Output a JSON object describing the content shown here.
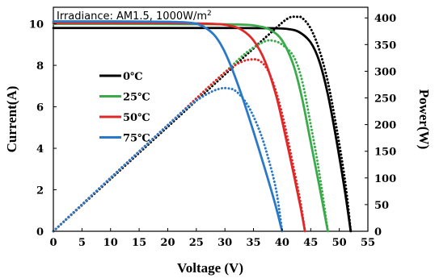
{
  "chart_data": {
    "type": "line",
    "annotation": "Irradiance: AM1.5,  1000W/m",
    "annotation_sup": "2",
    "xlabel": "Voltage (V)",
    "ylabel_left": "Current(A)",
    "ylabel_right": "Power(W)",
    "xlim": [
      0,
      55
    ],
    "ylim_left": [
      0,
      10.8
    ],
    "ylim_right": [
      0,
      420
    ],
    "xticks": [
      0,
      5,
      10,
      15,
      20,
      25,
      30,
      35,
      40,
      45,
      50,
      55
    ],
    "yticks_left": [
      0,
      2,
      4,
      6,
      8,
      10
    ],
    "yticks_right": [
      0,
      50,
      100,
      150,
      200,
      250,
      300,
      350,
      400
    ],
    "legend_position": "center-left",
    "grid": false,
    "series": [
      {
        "name": "0℃",
        "color": "#000000",
        "current": [
          [
            0,
            9.8
          ],
          [
            10,
            9.8
          ],
          [
            20,
            9.8
          ],
          [
            30,
            9.8
          ],
          [
            38,
            9.79
          ],
          [
            41,
            9.75
          ],
          [
            43,
            9.6
          ],
          [
            45,
            9.1
          ],
          [
            46.5,
            8.2
          ],
          [
            48,
            6.6
          ],
          [
            49.5,
            4.4
          ],
          [
            51,
            1.9
          ],
          [
            52,
            0
          ]
        ],
        "power": [
          [
            0,
            0
          ],
          [
            10,
            98
          ],
          [
            20,
            196
          ],
          [
            30,
            294
          ],
          [
            38,
            372
          ],
          [
            41,
            399
          ],
          [
            42.5,
            402
          ],
          [
            43.5,
            400
          ],
          [
            45,
            380
          ],
          [
            46.5,
            340
          ],
          [
            48,
            280
          ],
          [
            49.5,
            195
          ],
          [
            51,
            95
          ],
          [
            52,
            0
          ]
        ]
      },
      {
        "name": "25℃",
        "color": "#3aaa4a",
        "current": [
          [
            0,
            10.0
          ],
          [
            10,
            10.0
          ],
          [
            20,
            9.99
          ],
          [
            30,
            9.98
          ],
          [
            34,
            9.95
          ],
          [
            36,
            9.88
          ],
          [
            38,
            9.7
          ],
          [
            40,
            9.2
          ],
          [
            42,
            8.0
          ],
          [
            43.5,
            6.4
          ],
          [
            45,
            4.3
          ],
          [
            46.5,
            2.2
          ],
          [
            48,
            0
          ]
        ],
        "power": [
          [
            0,
            0
          ],
          [
            10,
            100
          ],
          [
            20,
            199
          ],
          [
            30,
            298
          ],
          [
            34,
            337
          ],
          [
            37,
            356
          ],
          [
            38.5,
            357
          ],
          [
            40,
            350
          ],
          [
            42,
            328
          ],
          [
            43.5,
            282
          ],
          [
            45,
            200
          ],
          [
            46.5,
            110
          ],
          [
            48,
            0
          ]
        ]
      },
      {
        "name": "50℃",
        "color": "#e02828",
        "current": [
          [
            0,
            10.05
          ],
          [
            10,
            10.05
          ],
          [
            20,
            10.04
          ],
          [
            28,
            10.0
          ],
          [
            31,
            9.9
          ],
          [
            33,
            9.7
          ],
          [
            35,
            9.2
          ],
          [
            37,
            8.2
          ],
          [
            39,
            6.5
          ],
          [
            40.5,
            4.7
          ],
          [
            42,
            2.8
          ],
          [
            43.2,
            1.2
          ],
          [
            44,
            0
          ]
        ],
        "power": [
          [
            0,
            0
          ],
          [
            10,
            100
          ],
          [
            20,
            199
          ],
          [
            28,
            279
          ],
          [
            31,
            306
          ],
          [
            33,
            318
          ],
          [
            34.5,
            322
          ],
          [
            36,
            320
          ],
          [
            37.5,
            302
          ],
          [
            39,
            260
          ],
          [
            40.5,
            197
          ],
          [
            42,
            120
          ],
          [
            43.2,
            55
          ],
          [
            44,
            0
          ]
        ]
      },
      {
        "name": "75℃",
        "color": "#2a78c8",
        "current": [
          [
            0,
            10.12
          ],
          [
            10,
            10.12
          ],
          [
            20,
            10.1
          ],
          [
            24,
            10.05
          ],
          [
            26,
            9.9
          ],
          [
            28,
            9.5
          ],
          [
            29.5,
            8.9
          ],
          [
            31,
            8.0
          ],
          [
            33,
            6.5
          ],
          [
            35,
            4.8
          ],
          [
            37,
            3.0
          ],
          [
            38.8,
            1.3
          ],
          [
            40,
            0
          ]
        ],
        "power": [
          [
            0,
            0
          ],
          [
            10,
            100
          ],
          [
            20,
            199
          ],
          [
            24,
            237
          ],
          [
            27,
            258
          ],
          [
            29,
            267
          ],
          [
            30.5,
            268
          ],
          [
            32,
            262
          ],
          [
            34,
            236
          ],
          [
            36,
            190
          ],
          [
            37.5,
            140
          ],
          [
            39,
            75
          ],
          [
            40,
            0
          ]
        ]
      }
    ]
  }
}
